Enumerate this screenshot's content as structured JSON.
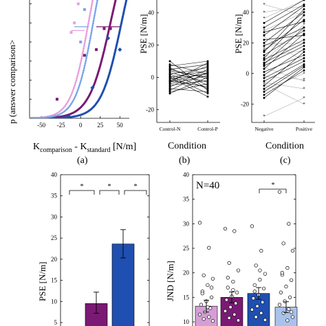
{
  "colors": {
    "purple": "#7a1a74",
    "blue": "#1f4fb0",
    "pink": "#e8a0dc",
    "light_blue": "#79a6e8",
    "light_purple": "#d59fd6",
    "lighter_blue": "#a9c2ec",
    "black": "#000000",
    "gray": "#b8b8b8"
  },
  "panels": {
    "a": {
      "caption": "(a)",
      "xlabel_main": "K",
      "xlabel_sub1": "comparison",
      "xlabel_mid": " - K",
      "xlabel_sub2": "standard",
      "xlabel_unit": " [N/m]",
      "ylabel": "p (answer comparison>"
    },
    "b": {
      "caption": "(b)",
      "xlabel": "Condition",
      "ylabel": "PSE [N/m]"
    },
    "c": {
      "caption": "(c)",
      "xlabel": "Condition",
      "ylabel": "PSE [N/m]"
    },
    "d": {
      "ylabel": "PSE [N/m]"
    },
    "e": {
      "ylabel": "JND [N/m]",
      "annotation": "N=40"
    }
  },
  "chart_data": [
    {
      "id": "a",
      "type": "line",
      "xlabel": "Kcomparison - Kstandard [N/m]",
      "ylabel": "p (answer comparison>",
      "xlim": [
        -65,
        62
      ],
      "ylim": [
        0,
        0.62
      ],
      "xticks": [
        "-50",
        "-25",
        "0",
        "25",
        "50"
      ],
      "yticks": [
        "0",
        "0.1",
        "0.2",
        "0.3",
        "0.4",
        "0.5",
        "0.6"
      ],
      "curves": [
        {
          "series": "purple",
          "style": "solid",
          "mu": 38,
          "sigma": 23
        },
        {
          "series": "blue",
          "style": "solid",
          "mu": 52,
          "sigma": 22
        },
        {
          "series": "pink",
          "style": "dotted",
          "mu": 10,
          "sigma": 19
        },
        {
          "series": "light_blue",
          "style": "dotted",
          "mu": 16,
          "sigma": 19
        }
      ],
      "points": [
        {
          "series": "purple",
          "x": -30,
          "y": 0.1
        },
        {
          "series": "purple",
          "x": 5,
          "y": 0.33
        },
        {
          "series": "purple",
          "x": 20,
          "y": 0.36
        },
        {
          "series": "purple",
          "x": 30,
          "y": 0.47
        },
        {
          "series": "purple",
          "x": 38,
          "y": 0.47
        },
        {
          "series": "blue",
          "x": -15,
          "y": 0.01
        },
        {
          "series": "blue",
          "x": 15,
          "y": 0.16
        },
        {
          "series": "blue",
          "x": 35,
          "y": 0.42
        },
        {
          "series": "blue",
          "x": 50,
          "y": 0.36
        },
        {
          "series": "pink",
          "x": -12,
          "y": 0.45
        },
        {
          "series": "pink",
          "x": -8,
          "y": 0.5
        },
        {
          "series": "pink",
          "x": -3,
          "y": 0.6
        },
        {
          "series": "light_blue",
          "x": 5,
          "y": 0.57
        },
        {
          "series": "light_blue",
          "x": 0,
          "y": 0.4
        }
      ],
      "hlines": [
        {
          "series": "purple",
          "x0": 20,
          "x1": 50,
          "y": 0.48
        },
        {
          "series": "light_blue",
          "x0": -8,
          "x1": 10,
          "y": 0.48
        },
        {
          "series": "pink",
          "x0": -12,
          "x1": 5,
          "y": 0.46
        }
      ]
    },
    {
      "id": "b",
      "type": "line",
      "xlabel": "Condition",
      "ylabel": "PSE [N/m]",
      "categories": [
        "Control-N",
        "Control-P"
      ],
      "ylim": [
        -28,
        48
      ],
      "yticks": [
        "-20",
        "0",
        "20",
        "40"
      ],
      "pairs": [
        [
          10,
          -8
        ],
        [
          8,
          2
        ],
        [
          7,
          10
        ],
        [
          6,
          -5
        ],
        [
          5,
          8
        ],
        [
          4,
          0
        ],
        [
          3,
          -3
        ],
        [
          2,
          6
        ],
        [
          1,
          -10
        ],
        [
          0,
          4
        ],
        [
          -1,
          2
        ],
        [
          -2,
          -6
        ],
        [
          -3,
          9
        ],
        [
          -4,
          1
        ],
        [
          -5,
          -2
        ],
        [
          -6,
          5
        ],
        [
          -7,
          -9
        ],
        [
          -8,
          3
        ],
        [
          -9,
          -4
        ],
        [
          -10,
          0
        ],
        [
          2,
          -7
        ],
        [
          -2,
          7
        ],
        [
          0,
          -12
        ],
        [
          -3,
          3
        ],
        [
          5,
          -1
        ]
      ]
    },
    {
      "id": "c",
      "type": "line",
      "xlabel": "Condition",
      "ylabel": "PSE [N/m]",
      "categories": [
        "Negative",
        "Positive"
      ],
      "ylim": [
        -32,
        48
      ],
      "yticks": [
        "-20",
        "0",
        "20",
        "40"
      ],
      "black_pairs": [
        [
          33,
          48
        ],
        [
          30,
          45
        ],
        [
          25,
          44
        ],
        [
          20,
          40
        ],
        [
          18,
          30
        ],
        [
          15,
          35
        ],
        [
          12,
          28
        ],
        [
          10,
          38
        ],
        [
          9,
          22
        ],
        [
          7,
          20
        ],
        [
          5,
          18
        ],
        [
          3,
          26
        ],
        [
          1,
          12
        ],
        [
          -1,
          16
        ],
        [
          -3,
          10
        ],
        [
          -5,
          8
        ],
        [
          -8,
          14
        ],
        [
          -10,
          6
        ],
        [
          -12,
          5
        ],
        [
          -14,
          2
        ],
        [
          -16,
          4
        ],
        [
          27,
          34
        ],
        [
          22,
          25
        ],
        [
          14,
          42
        ],
        [
          6,
          30
        ]
      ],
      "gray_pairs": [
        [
          45,
          38
        ],
        [
          40,
          44
        ],
        [
          36,
          48
        ],
        [
          28,
          40
        ],
        [
          24,
          8
        ],
        [
          16,
          25
        ],
        [
          8,
          32
        ],
        [
          4,
          -5
        ],
        [
          -2,
          -4
        ],
        [
          -6,
          -10
        ],
        [
          -11,
          0
        ],
        [
          -28,
          -16
        ],
        [
          11,
          15
        ],
        [
          19,
          20
        ],
        [
          -7,
          -20
        ]
      ]
    },
    {
      "id": "d",
      "type": "bar",
      "ylabel": "PSE [N/m]",
      "ylim": [
        5,
        40
      ],
      "yticks": [
        "5",
        "10",
        "15",
        "20",
        "25",
        "30",
        "35",
        "40"
      ],
      "bars": [
        {
          "series": "purple",
          "value": 9.5,
          "err_low": 7.2,
          "err_high": 12.2
        },
        {
          "series": "blue",
          "value": 23.6,
          "err_low": 20.3,
          "err_high": 27.0
        }
      ],
      "significance": [
        "*",
        "*",
        "*"
      ]
    },
    {
      "id": "e",
      "type": "bar",
      "ylabel": "JND [N/m]",
      "annotation": "N=40",
      "ylim": [
        10,
        40
      ],
      "yticks": [
        "10",
        "15",
        "20",
        "25",
        "30",
        "35",
        "40"
      ],
      "bars": [
        {
          "series": "light_purple",
          "value": 13.2,
          "err": 1.2
        },
        {
          "series": "purple",
          "value": 15.0,
          "err": 1.1
        },
        {
          "series": "blue",
          "value": 15.8,
          "err": 1.2
        },
        {
          "series": "lighter_blue",
          "value": 13.0,
          "err": 1.1
        }
      ],
      "significance": [
        "*"
      ],
      "scatter": [
        [
          30.2,
          25.1,
          19.5,
          18.8,
          17.5,
          16.2,
          15.0,
          14.2,
          13.5,
          12.8,
          12.0,
          11.5,
          11.0,
          10.6,
          10.2,
          13.0,
          15.8,
          17.0
        ],
        [
          29.0,
          28.5,
          22.0,
          20.5,
          18.2,
          17.0,
          16.0,
          15.2,
          14.5,
          13.8,
          13.0,
          12.2,
          11.5,
          10.8,
          10.3,
          16.5,
          19.0
        ],
        [
          29.5,
          24.5,
          21.5,
          19.8,
          18.6,
          17.5,
          16.8,
          15.5,
          14.8,
          14.0,
          13.2,
          12.5,
          11.8,
          11.0,
          10.4,
          20.5,
          16.2
        ],
        [
          36.5,
          30.0,
          26.0,
          24.5,
          21.0,
          19.6,
          18.5,
          17.2,
          16.0,
          15.0,
          14.2,
          13.5,
          12.6,
          11.8,
          11.0,
          10.3,
          20.0,
          12.0
        ]
      ]
    }
  ]
}
